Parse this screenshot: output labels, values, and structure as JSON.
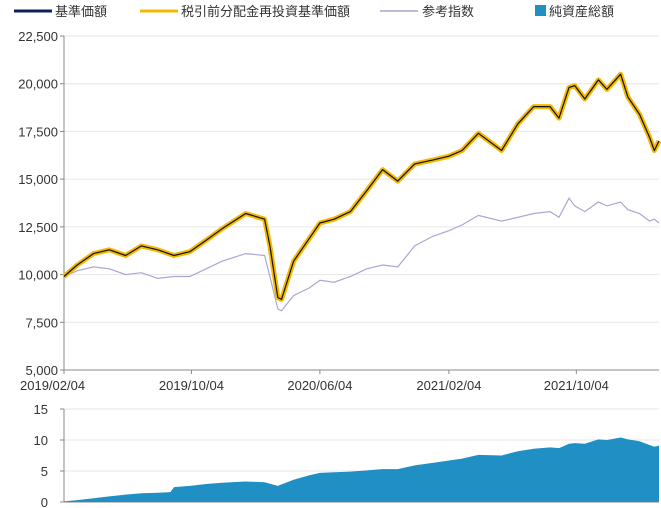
{
  "legend": {
    "items": [
      {
        "label": "基準価額",
        "color": "#0d1f5c",
        "kind": "line"
      },
      {
        "label": "税引前分配金再投資基準価額",
        "color": "#f5b800",
        "kind": "line"
      },
      {
        "label": "参考指数",
        "color": "#a9a6d4",
        "kind": "line"
      },
      {
        "label": "純資産総額",
        "color": "#1f8fc4",
        "kind": "square"
      }
    ]
  },
  "chart_data": [
    {
      "type": "line",
      "ylim": [
        5000,
        22500
      ],
      "y_ticks": [
        "5,000",
        "7,500",
        "10,000",
        "12,500",
        "15,000",
        "17,500",
        "20,000",
        "22,500"
      ],
      "y_tick_values": [
        5000,
        7500,
        10000,
        12500,
        15000,
        17500,
        20000,
        22500
      ],
      "x_ticks": [
        "2019/02/04",
        "2019/10/04",
        "2020/06/04",
        "2021/02/04",
        "2021/10/04"
      ],
      "x_tick_values": [
        "2019-02-04",
        "2019-10-04",
        "2020-06-04",
        "2021-02-04",
        "2021-10-04"
      ],
      "xlim": [
        "2019-02-04",
        "2022-03-10"
      ],
      "series": [
        {
          "name": "基準価額",
          "color": "#0d1f5c",
          "points": [
            [
              "2019-02-04",
              9900
            ],
            [
              "2019-03-01",
              10500
            ],
            [
              "2019-04-01",
              11100
            ],
            [
              "2019-05-01",
              11300
            ],
            [
              "2019-06-01",
              11000
            ],
            [
              "2019-07-01",
              11500
            ],
            [
              "2019-08-01",
              11300
            ],
            [
              "2019-09-01",
              11000
            ],
            [
              "2019-10-01",
              11200
            ],
            [
              "2019-11-01",
              11800
            ],
            [
              "2019-12-01",
              12400
            ],
            [
              "2020-01-15",
              13200
            ],
            [
              "2020-02-20",
              12900
            ],
            [
              "2020-03-01",
              11500
            ],
            [
              "2020-03-16",
              8800
            ],
            [
              "2020-03-23",
              8700
            ],
            [
              "2020-04-15",
              10700
            ],
            [
              "2020-05-15",
              11900
            ],
            [
              "2020-06-04",
              12700
            ],
            [
              "2020-07-01",
              12900
            ],
            [
              "2020-08-01",
              13300
            ],
            [
              "2020-09-01",
              14400
            ],
            [
              "2020-10-01",
              15500
            ],
            [
              "2020-10-30",
              14900
            ],
            [
              "2020-12-01",
              15800
            ],
            [
              "2021-01-04",
              16000
            ],
            [
              "2021-02-04",
              16200
            ],
            [
              "2021-03-01",
              16500
            ],
            [
              "2021-04-01",
              17400
            ],
            [
              "2021-05-15",
              16500
            ],
            [
              "2021-06-15",
              17900
            ],
            [
              "2021-07-15",
              18800
            ],
            [
              "2021-08-15",
              18800
            ],
            [
              "2021-09-01",
              18200
            ],
            [
              "2021-09-20",
              19800
            ],
            [
              "2021-10-01",
              19900
            ],
            [
              "2021-10-20",
              19200
            ],
            [
              "2021-11-15",
              20200
            ],
            [
              "2021-12-01",
              19700
            ],
            [
              "2021-12-27",
              20500
            ],
            [
              "2022-01-10",
              19300
            ],
            [
              "2022-02-01",
              18400
            ],
            [
              "2022-02-20",
              17200
            ],
            [
              "2022-03-01",
              16500
            ],
            [
              "2022-03-10",
              17000
            ]
          ]
        },
        {
          "name": "税引前分配金再投資基準価額",
          "color": "#f5b800",
          "points": [
            [
              "2019-02-04",
              9900
            ],
            [
              "2019-03-01",
              10500
            ],
            [
              "2019-04-01",
              11100
            ],
            [
              "2019-05-01",
              11300
            ],
            [
              "2019-06-01",
              11000
            ],
            [
              "2019-07-01",
              11500
            ],
            [
              "2019-08-01",
              11300
            ],
            [
              "2019-09-01",
              11000
            ],
            [
              "2019-10-01",
              11200
            ],
            [
              "2019-11-01",
              11800
            ],
            [
              "2019-12-01",
              12400
            ],
            [
              "2020-01-15",
              13200
            ],
            [
              "2020-02-20",
              12900
            ],
            [
              "2020-03-01",
              11500
            ],
            [
              "2020-03-16",
              8800
            ],
            [
              "2020-03-23",
              8700
            ],
            [
              "2020-04-15",
              10700
            ],
            [
              "2020-05-15",
              11900
            ],
            [
              "2020-06-04",
              12700
            ],
            [
              "2020-07-01",
              12900
            ],
            [
              "2020-08-01",
              13300
            ],
            [
              "2020-09-01",
              14400
            ],
            [
              "2020-10-01",
              15500
            ],
            [
              "2020-10-30",
              14900
            ],
            [
              "2020-12-01",
              15800
            ],
            [
              "2021-01-04",
              16000
            ],
            [
              "2021-02-04",
              16200
            ],
            [
              "2021-03-01",
              16500
            ],
            [
              "2021-04-01",
              17400
            ],
            [
              "2021-05-15",
              16500
            ],
            [
              "2021-06-15",
              17900
            ],
            [
              "2021-07-15",
              18800
            ],
            [
              "2021-08-15",
              18800
            ],
            [
              "2021-09-01",
              18200
            ],
            [
              "2021-09-20",
              19800
            ],
            [
              "2021-10-01",
              19900
            ],
            [
              "2021-10-20",
              19200
            ],
            [
              "2021-11-15",
              20200
            ],
            [
              "2021-12-01",
              19700
            ],
            [
              "2021-12-27",
              20500
            ],
            [
              "2022-01-10",
              19300
            ],
            [
              "2022-02-01",
              18400
            ],
            [
              "2022-02-20",
              17200
            ],
            [
              "2022-03-01",
              16500
            ],
            [
              "2022-03-10",
              17000
            ]
          ]
        },
        {
          "name": "参考指数",
          "color": "#a9a6d4",
          "points": [
            [
              "2019-02-04",
              9900
            ],
            [
              "2019-03-01",
              10200
            ],
            [
              "2019-04-01",
              10400
            ],
            [
              "2019-05-01",
              10300
            ],
            [
              "2019-06-01",
              10000
            ],
            [
              "2019-07-01",
              10100
            ],
            [
              "2019-08-01",
              9800
            ],
            [
              "2019-09-01",
              9900
            ],
            [
              "2019-10-01",
              9900
            ],
            [
              "2019-11-01",
              10300
            ],
            [
              "2019-12-01",
              10700
            ],
            [
              "2020-01-15",
              11100
            ],
            [
              "2020-02-20",
              11000
            ],
            [
              "2020-03-01",
              9900
            ],
            [
              "2020-03-16",
              8200
            ],
            [
              "2020-03-23",
              8100
            ],
            [
              "2020-04-15",
              8900
            ],
            [
              "2020-05-15",
              9300
            ],
            [
              "2020-06-04",
              9700
            ],
            [
              "2020-07-01",
              9600
            ],
            [
              "2020-08-01",
              9900
            ],
            [
              "2020-09-01",
              10300
            ],
            [
              "2020-10-01",
              10500
            ],
            [
              "2020-10-30",
              10400
            ],
            [
              "2020-12-01",
              11500
            ],
            [
              "2021-01-04",
              12000
            ],
            [
              "2021-02-04",
              12300
            ],
            [
              "2021-03-01",
              12600
            ],
            [
              "2021-04-01",
              13100
            ],
            [
              "2021-05-15",
              12800
            ],
            [
              "2021-06-15",
              13000
            ],
            [
              "2021-07-15",
              13200
            ],
            [
              "2021-08-15",
              13300
            ],
            [
              "2021-09-01",
              13000
            ],
            [
              "2021-09-20",
              14000
            ],
            [
              "2021-10-01",
              13600
            ],
            [
              "2021-10-20",
              13300
            ],
            [
              "2021-11-15",
              13800
            ],
            [
              "2021-12-01",
              13600
            ],
            [
              "2021-12-27",
              13800
            ],
            [
              "2022-01-10",
              13400
            ],
            [
              "2022-02-01",
              13200
            ],
            [
              "2022-02-20",
              12800
            ],
            [
              "2022-03-01",
              12900
            ],
            [
              "2022-03-10",
              12700
            ]
          ]
        }
      ]
    },
    {
      "type": "area",
      "ylim": [
        0,
        15
      ],
      "y_ticks": [
        "0",
        "5",
        "10",
        "15"
      ],
      "y_tick_values": [
        0,
        5,
        10,
        15
      ],
      "xlim": [
        "2019-02-04",
        "2022-03-10"
      ],
      "series": [
        {
          "name": "純資産総額",
          "color": "#1f8fc4",
          "points": [
            [
              "2019-02-04",
              0.1
            ],
            [
              "2019-03-01",
              0.3
            ],
            [
              "2019-04-01",
              0.6
            ],
            [
              "2019-05-01",
              0.9
            ],
            [
              "2019-06-01",
              1.2
            ],
            [
              "2019-07-01",
              1.4
            ],
            [
              "2019-08-01",
              1.5
            ],
            [
              "2019-08-25",
              1.6
            ],
            [
              "2019-09-01",
              2.4
            ],
            [
              "2019-10-01",
              2.6
            ],
            [
              "2019-11-01",
              2.9
            ],
            [
              "2019-12-01",
              3.1
            ],
            [
              "2020-01-15",
              3.3
            ],
            [
              "2020-02-20",
              3.2
            ],
            [
              "2020-03-16",
              2.6
            ],
            [
              "2020-04-15",
              3.6
            ],
            [
              "2020-05-15",
              4.3
            ],
            [
              "2020-06-04",
              4.7
            ],
            [
              "2020-07-01",
              4.8
            ],
            [
              "2020-08-01",
              4.9
            ],
            [
              "2020-09-01",
              5.1
            ],
            [
              "2020-10-01",
              5.3
            ],
            [
              "2020-10-30",
              5.3
            ],
            [
              "2020-12-01",
              5.9
            ],
            [
              "2021-01-04",
              6.3
            ],
            [
              "2021-02-04",
              6.7
            ],
            [
              "2021-03-01",
              7.0
            ],
            [
              "2021-04-01",
              7.6
            ],
            [
              "2021-05-15",
              7.5
            ],
            [
              "2021-06-15",
              8.2
            ],
            [
              "2021-07-15",
              8.6
            ],
            [
              "2021-08-15",
              8.8
            ],
            [
              "2021-09-01",
              8.7
            ],
            [
              "2021-09-20",
              9.4
            ],
            [
              "2021-10-01",
              9.5
            ],
            [
              "2021-10-20",
              9.4
            ],
            [
              "2021-11-15",
              10.1
            ],
            [
              "2021-12-01",
              10.0
            ],
            [
              "2021-12-27",
              10.4
            ],
            [
              "2022-01-10",
              10.1
            ],
            [
              "2022-02-01",
              9.8
            ],
            [
              "2022-02-20",
              9.2
            ],
            [
              "2022-03-01",
              8.9
            ],
            [
              "2022-03-10",
              9.1
            ]
          ]
        }
      ]
    }
  ]
}
